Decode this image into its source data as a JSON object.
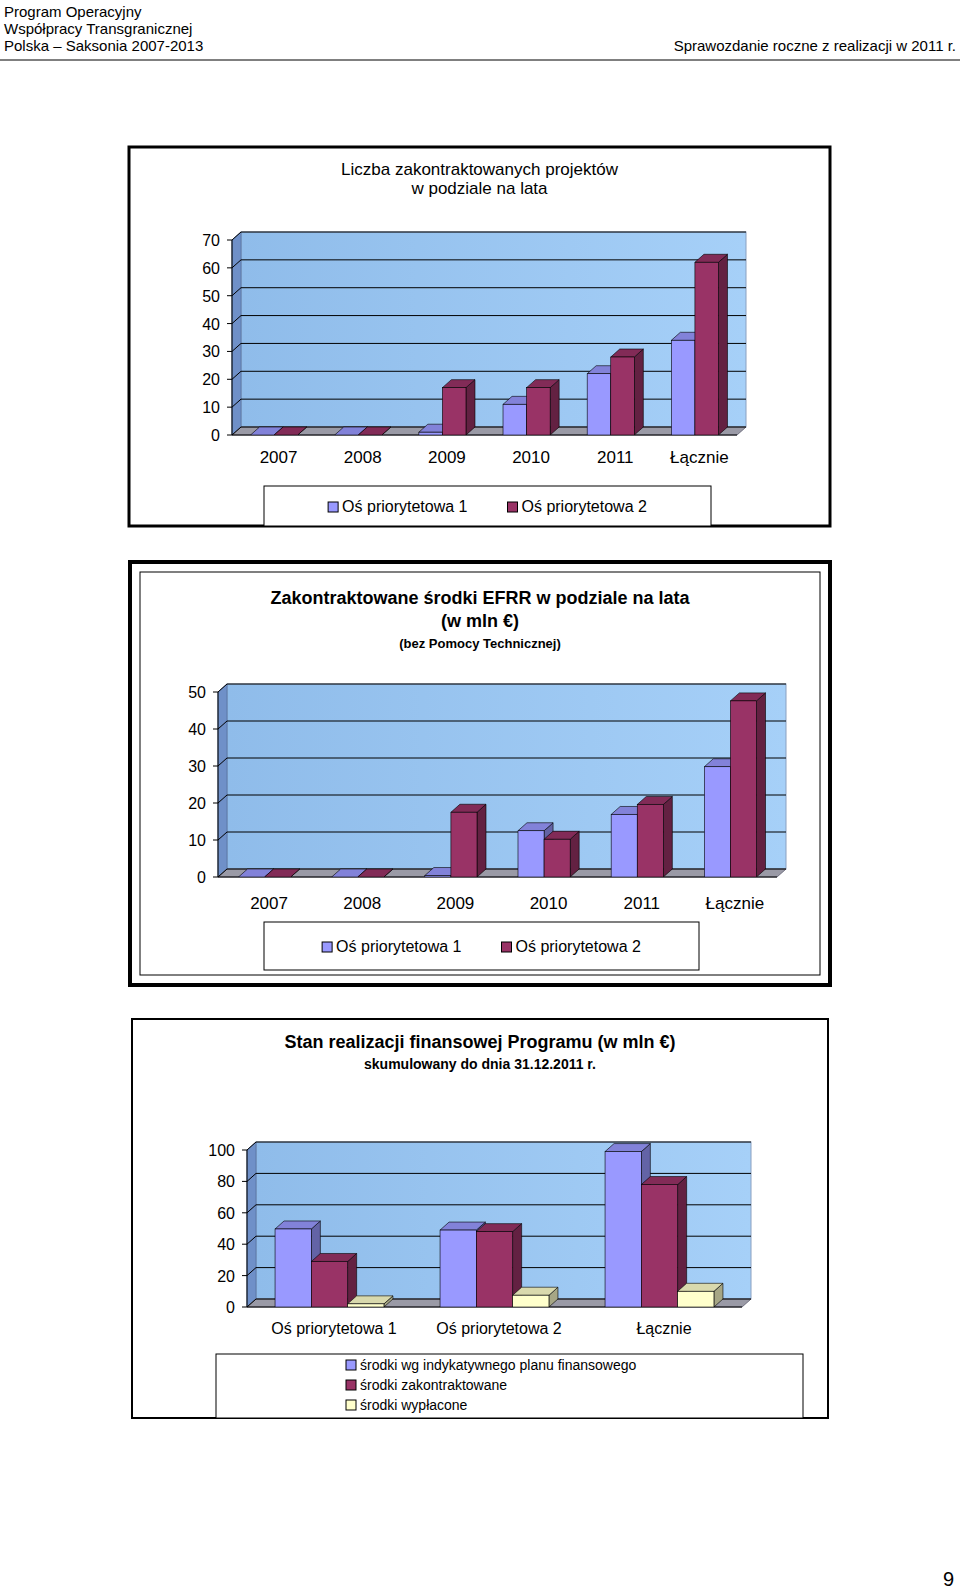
{
  "header": {
    "left": [
      "Program Operacyjny",
      "Współpracy Transgranicznej",
      "Polska – Saksonia 2007-2013"
    ],
    "right": "Sprawozdanie roczne z realizacji w 2011 r."
  },
  "page_number": 9,
  "chart_data": [
    {
      "type": "bar",
      "title": "Liczba zakontraktowanych projektów\nw podziale na lata",
      "categories": [
        "2007",
        "2008",
        "2009",
        "2010",
        "2011",
        "Łącznie"
      ],
      "series": [
        {
          "name": "Oś priorytetowa 1",
          "color": "#9999ff",
          "values": [
            0,
            0,
            1,
            11,
            22,
            34
          ]
        },
        {
          "name": "Oś priorytetowa 2",
          "color": "#993366",
          "values": [
            0,
            0,
            17,
            17,
            28,
            62
          ]
        }
      ],
      "ylim": [
        0,
        70
      ],
      "yticks": [
        0,
        10,
        20,
        30,
        40,
        50,
        60,
        70
      ],
      "grid": true,
      "legend": "bottom"
    },
    {
      "type": "bar",
      "title": "Zakontraktowane środki EFRR w podziale na lata\n(w mln €)",
      "subtitle": "(bez Pomocy Technicznej)",
      "categories": [
        "2007",
        "2008",
        "2009",
        "2010",
        "2011",
        "Łącznie"
      ],
      "series": [
        {
          "name": "Oś priorytetowa 1",
          "color": "#9999ff",
          "values": [
            0,
            0,
            0.4,
            12.5,
            16.9,
            29.8
          ]
        },
        {
          "name": "Oś priorytetowa 2",
          "color": "#993366",
          "values": [
            0,
            0,
            17.5,
            10.2,
            19.6,
            47.6
          ]
        }
      ],
      "ylim": [
        0,
        50
      ],
      "yticks": [
        0,
        10,
        20,
        30,
        40,
        50
      ],
      "grid": true,
      "legend": "bottom"
    },
    {
      "type": "bar",
      "title": "Stan realizacji finansowej Programu (w mln €)",
      "subtitle": "skumulowany do dnia 31.12.2011 r.",
      "categories": [
        "Oś priorytetowa 1",
        "Oś priorytetowa 2",
        "Łącznie"
      ],
      "series": [
        {
          "name": "środki wg indykatywnego planu finansowego",
          "color": "#9999ff",
          "values": [
            49.7,
            49,
            99
          ]
        },
        {
          "name": "środki zakontraktowane",
          "color": "#993366",
          "values": [
            29,
            48,
            78
          ]
        },
        {
          "name": "środki wypłacone",
          "color": "#ffffcc",
          "values": [
            2,
            7.5,
            10
          ]
        }
      ],
      "ylim": [
        0,
        100
      ],
      "yticks": [
        0,
        20,
        40,
        60,
        80,
        100
      ],
      "grid": true,
      "legend": "bottom"
    }
  ]
}
